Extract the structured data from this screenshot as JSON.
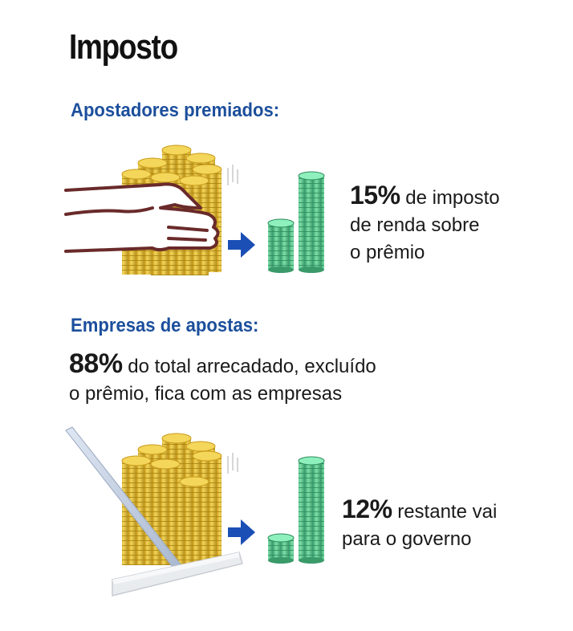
{
  "title": "Imposto",
  "section_prizes": {
    "heading": "Apostadores premiados:",
    "percent": "15%",
    "line1_rest": " de imposto",
    "line2": "de renda sobre",
    "line3": "o prêmio"
  },
  "section_companies": {
    "heading": "Empresas de apostas:",
    "percent": "88%",
    "line1_rest": " do total arrecadado, excluído",
    "line2": "o prêmio, fica com as empresas"
  },
  "section_government": {
    "percent": "12%",
    "line1_rest": " restante vai",
    "line2": "para o governo"
  },
  "colors": {
    "heading_blue": "#1c4f9c",
    "gold_coin": "#e8c43a",
    "gold_dark": "#b8901c",
    "green_coin": "#6fd3a0",
    "green_dark": "#3aa070",
    "arrow_blue": "#1b4fb5",
    "hand_outline": "#6a2a2a"
  },
  "icons": {
    "illustration_1": "hand-taking-gold-coins-icon",
    "illustration_2": "broom-sweeping-gold-coins-icon",
    "arrow": "right-arrow-icon",
    "result": "green-coin-stacks-icon"
  }
}
